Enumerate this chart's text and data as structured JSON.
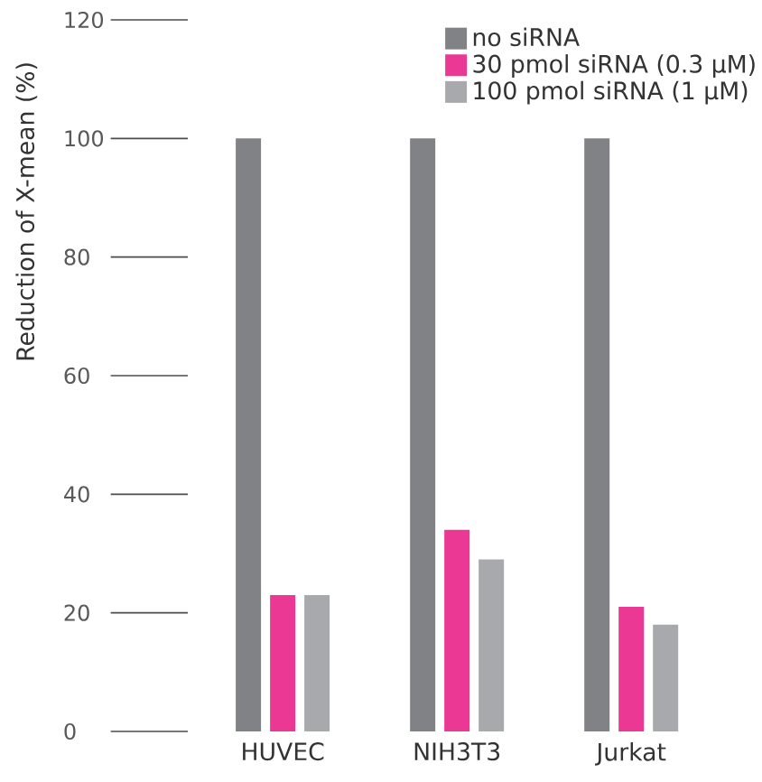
{
  "chart_data": {
    "type": "bar",
    "ylabel": "Reduction of X-mean (%)",
    "categories": [
      "HUVEC",
      "NIH3T3",
      "Jurkat"
    ],
    "series": [
      {
        "name": "no siRNA",
        "color": "#808285",
        "values": [
          100,
          100,
          100
        ]
      },
      {
        "name": "30 pmol siRNA (0.3 µM)",
        "color": "#ec3895",
        "values": [
          23,
          34,
          21
        ]
      },
      {
        "name": "100 pmol siRNA (1 µM)",
        "color": "#a7a9ac",
        "values": [
          23,
          29,
          18
        ]
      }
    ],
    "ylim": [
      0,
      120
    ],
    "yticks": [
      0,
      20,
      40,
      60,
      80,
      100,
      120
    ],
    "legend": "top right"
  }
}
